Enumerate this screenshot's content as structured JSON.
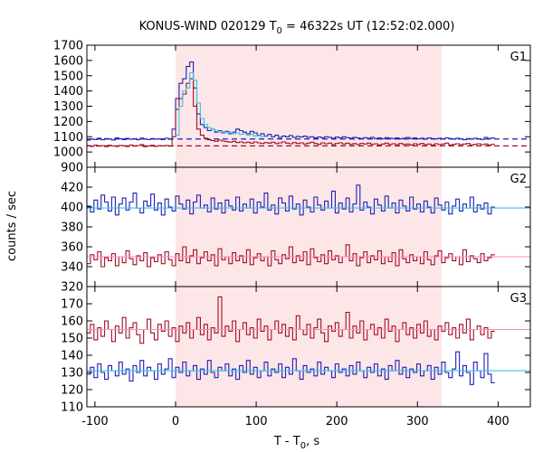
{
  "chart_data": {
    "type": "line",
    "title_main": "KONUS-WIND 020129 T",
    "title_sub": "0",
    "title_rest": " = 46322s UT (12:52:02.000)",
    "xlabel_main": "T - T",
    "xlabel_sub": "0",
    "xlabel_rest": ", s",
    "ylabel": "counts / sec",
    "xlim": [
      -110,
      440
    ],
    "x_ticks": [
      -100,
      0,
      100,
      200,
      300,
      400
    ],
    "x_tick_labels": [
      "-100",
      "0",
      "100",
      "200",
      "300",
      "400"
    ],
    "highlight_interval": [
      0,
      330
    ],
    "colors": {
      "blue": "#1f1fb4",
      "red": "#a01020",
      "cyan": "#33c6e8",
      "pink": "#ff88c8",
      "highlight": "#fde6e8"
    },
    "panels": [
      {
        "label": "G1",
        "ylim": [
          900,
          1700
        ],
        "y_ticks": [
          900,
          1000,
          1100,
          1200,
          1300,
          1400,
          1500,
          1600,
          1700
        ],
        "y_tick_labels": [
          "900",
          "1000",
          "1100",
          "1200",
          "1300",
          "1400",
          "1500",
          "1600",
          "1700"
        ],
        "background_levels": {
          "blue": 1085,
          "red": 1040
        },
        "series": [
          {
            "color_key": "blue",
            "bin_start": -110,
            "bin_width": 4.4,
            "values": [
              1078,
              1085,
              1082,
              1090,
              1080,
              1088,
              1084,
              1079,
              1092,
              1086,
              1081,
              1089,
              1083,
              1087,
              1080,
              1091,
              1085,
              1082,
              1088,
              1084,
              1086,
              1081,
              1090,
              1083,
              1150,
              1350,
              1450,
              1480,
              1560,
              1590,
              1420,
              1250,
              1180,
              1160,
              1140,
              1150,
              1130,
              1140,
              1125,
              1135,
              1120,
              1130,
              1150,
              1140,
              1130,
              1120,
              1135,
              1125,
              1110,
              1120,
              1105,
              1115,
              1100,
              1110,
              1095,
              1105,
              1100,
              1108,
              1095,
              1102,
              1098,
              1104,
              1096,
              1100,
              1092,
              1098,
              1094,
              1100,
              1096,
              1090,
              1098,
              1092,
              1100,
              1094,
              1090,
              1096,
              1092,
              1088,
              1094,
              1090,
              1096,
              1088,
              1092,
              1086,
              1094,
              1090,
              1088,
              1092,
              1086,
              1090,
              1095,
              1088,
              1092,
              1086,
              1090,
              1084,
              1092,
              1088,
              1086,
              1090,
              1085,
              1092,
              1088,
              1084,
              1090,
              1086,
              1080,
              1088,
              1084,
              1090,
              1086,
              1082,
              1095,
              1088,
              1092
            ]
          },
          {
            "color_key": "red",
            "bin_start": -110,
            "bin_width": 4.4,
            "values": [
              1042,
              1036,
              1045,
              1038,
              1041,
              1035,
              1044,
              1039,
              1037,
              1043,
              1040,
              1036,
              1046,
              1038,
              1042,
              1049,
              1035,
              1040,
              1044,
              1037,
              1041,
              1039,
              1043,
              1038,
              1100,
              1280,
              1350,
              1380,
              1450,
              1480,
              1300,
              1150,
              1110,
              1090,
              1080,
              1075,
              1070,
              1078,
              1072,
              1068,
              1065,
              1070,
              1062,
              1066,
              1060,
              1064,
              1058,
              1066,
              1060,
              1056,
              1062,
              1058,
              1064,
              1055,
              1060,
              1066,
              1058,
              1054,
              1062,
              1056,
              1060,
              1052,
              1058,
              1064,
              1056,
              1050,
              1060,
              1054,
              1058,
              1048,
              1056,
              1060,
              1052,
              1058,
              1050,
              1055,
              1048,
              1056,
              1052,
              1058,
              1050,
              1054,
              1046,
              1052,
              1058,
              1050,
              1054,
              1048,
              1056,
              1050,
              1052,
              1046,
              1054,
              1050,
              1056,
              1048,
              1052,
              1046,
              1054,
              1048,
              1052,
              1058,
              1046,
              1050,
              1054,
              1048,
              1052,
              1056,
              1046,
              1050,
              1054,
              1048,
              1052,
              1046,
              1050
            ]
          },
          {
            "color_key": "cyan",
            "bin_start": 0,
            "bin_width": 4.4,
            "values": [
              1110,
              1300,
              1400,
              1420,
              1520,
              1470,
              1320,
              1220,
              1180,
              1160,
              1150,
              1140,
              1130,
              1135,
              1125,
              1130,
              1120,
              1125,
              1115,
              1120,
              1110,
              1115,
              1105,
              1108,
              1100,
              1102
            ]
          }
        ]
      },
      {
        "label": "G2",
        "ylim": [
          320,
          440
        ],
        "y_ticks": [
          320,
          340,
          360,
          380,
          400,
          420
        ],
        "y_tick_labels": [
          "320",
          "340",
          "360",
          "380",
          "400",
          "420"
        ],
        "background_levels": {
          "blue": 399,
          "red": 350
        },
        "series": [
          {
            "color_key": "blue",
            "bin_start": -110,
            "bin_width": 4.4,
            "values": [
              401,
              395,
              407,
              398,
              412,
              405,
              396,
              410,
              392,
              403,
              409,
              397,
              405,
              414,
              399,
              394,
              406,
              401,
              413,
              397,
              404,
              392,
              408,
              400,
              396,
              411,
              403,
              398,
              407,
              393,
              405,
              412,
              399,
              402,
              395,
              409,
              398,
              404,
              394,
              407,
              401,
              397,
              410,
              396,
              403,
              399,
              408,
              394,
              405,
              400,
              414,
              397,
              402,
              393,
              409,
              404,
              396,
              411,
              398,
              403,
              392,
              407,
              400,
              395,
              410,
              402,
              397,
              406,
              399,
              416,
              394,
              404,
              398,
              409,
              395,
              403,
              422,
              397,
              405,
              400,
              393,
              408,
              402,
              396,
              411,
              399,
              404,
              394,
              407,
              401,
              396,
              410,
              398,
              403,
              395,
              406,
              400,
              394,
              409,
              402,
              397,
              405,
              393,
              401,
              408,
              396,
              403,
              399,
              410,
              395,
              402,
              398,
              404,
              393,
              400
            ]
          },
          {
            "color_key": "red",
            "bin_start": -110,
            "bin_width": 4.4,
            "values": [
              343,
              352,
              347,
              355,
              340,
              349,
              346,
              353,
              341,
              350,
              344,
              356,
              348,
              342,
              351,
              346,
              354,
              340,
              349,
              345,
              352,
              343,
              355,
              347,
              341,
              353,
              346,
              360,
              344,
              351,
              357,
              343,
              349,
              355,
              346,
              352,
              341,
              358,
              347,
              350,
              343,
              354,
              346,
              351,
              344,
              357,
              342,
              349,
              353,
              346,
              350,
              341,
              356,
              347,
              343,
              352,
              348,
              360,
              344,
              351,
              346,
              355,
              342,
              358,
              349,
              345,
              352,
              343,
              356,
              347,
              351,
              344,
              350,
              362,
              346,
              353,
              341,
              349,
              355,
              344,
              351,
              347,
              356,
              343,
              350,
              345,
              354,
              341,
              357,
              348,
              344,
              352,
              346,
              350,
              343,
              355,
              347,
              342,
              351,
              356,
              344,
              349,
              353,
              346,
              350,
              342,
              357,
              345,
              351,
              348,
              344,
              353,
              346,
              349,
              352
            ]
          },
          {
            "color_key": "cyan",
            "bin_start": -110,
            "bin_width": 550,
            "values": [
              399
            ]
          },
          {
            "color_key": "pink",
            "bin_start": -110,
            "bin_width": 550,
            "values": [
              350
            ]
          }
        ]
      },
      {
        "label": "G3",
        "ylim": [
          110,
          180
        ],
        "y_ticks": [
          110,
          120,
          130,
          140,
          150,
          160,
          170
        ],
        "y_tick_labels": [
          "110",
          "120",
          "130",
          "140",
          "150",
          "160",
          "170"
        ],
        "background_levels": {
          "blue": 131,
          "red": 155
        },
        "series": [
          {
            "color_key": "red",
            "bin_start": -110,
            "bin_width": 4.4,
            "values": [
              153,
              158,
              149,
              156,
              151,
              160,
              155,
              148,
              157,
              153,
              162,
              150,
              156,
              159,
              152,
              147,
              155,
              161,
              153,
              149,
              158,
              154,
              160,
              151,
              156,
              148,
              157,
              153,
              159,
              150,
              155,
              162,
              152,
              158,
              149,
              156,
              153,
              174,
              151,
              157,
              154,
              160,
              148,
              155,
              159,
              152,
              156,
              150,
              161,
              154,
              157,
              149,
              155,
              160,
              153,
              158,
              151,
              156,
              149,
              163,
              155,
              152,
              158,
              150,
              156,
              161,
              153,
              148,
              157,
              154,
              159,
              151,
              155,
              165,
              150,
              157,
              153,
              160,
              149,
              155,
              158,
              152,
              156,
              150,
              161,
              154,
              157,
              148,
              155,
              159,
              152,
              156,
              150,
              158,
              153,
              160,
              151,
              155,
              149,
              157,
              154,
              159,
              152,
              156,
              150,
              158,
              153,
              161,
              149,
              155,
              157,
              152,
              156,
              150,
              154
            ]
          },
          {
            "color_key": "blue",
            "bin_start": -110,
            "bin_width": 4.4,
            "values": [
              129,
              133,
              127,
              135,
              130,
              126,
              134,
              131,
              128,
              136,
              129,
              132,
              125,
              134,
              130,
              137,
              128,
              133,
              131,
              126,
              135,
              129,
              132,
              138,
              127,
              133,
              130,
              136,
              128,
              131,
              134,
              126,
              132,
              129,
              137,
              130,
              127,
              133,
              131,
              135,
              128,
              132,
              126,
              134,
              130,
              137,
              129,
              133,
              127,
              131,
              136,
              128,
              132,
              130,
              135,
              127,
              133,
              129,
              138,
              131,
              126,
              134,
              130,
              132,
              128,
              136,
              129,
              133,
              131,
              127,
              135,
              130,
              132,
              128,
              134,
              129,
              136,
              131,
              127,
              133,
              130,
              135,
              128,
              132,
              126,
              134,
              131,
              137,
              129,
              133,
              127,
              132,
              130,
              135,
              128,
              131,
              134,
              126,
              133,
              129,
              136,
              130,
              127,
              132,
              142,
              128,
              134,
              130,
              123,
              136,
              131,
              127,
              141,
              129,
              124
            ]
          },
          {
            "color_key": "cyan",
            "bin_start": -110,
            "bin_width": 550,
            "values": [
              131
            ]
          },
          {
            "color_key": "pink",
            "bin_start": -110,
            "bin_width": 550,
            "values": [
              155
            ]
          }
        ]
      }
    ]
  }
}
